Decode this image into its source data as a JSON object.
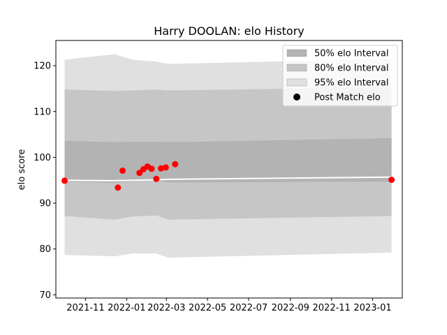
{
  "chart_data": {
    "type": "area",
    "title": "Harry DOOLAN: elo History",
    "xlabel": "",
    "ylabel": "elo score",
    "x_axis_kind": "date",
    "xlim": [
      "2021-09-18",
      "2023-02-14"
    ],
    "ylim": [
      69.3,
      125.5
    ],
    "x_tick_labels": [
      "2021-11",
      "2022-01",
      "2022-03",
      "2022-05",
      "2022-07",
      "2022-09",
      "2022-11",
      "2023-01"
    ],
    "y_ticks": [
      70,
      80,
      90,
      100,
      110,
      120
    ],
    "grid": false,
    "legend_placement": "upper right",
    "legend": [
      {
        "label": "50% elo Interval",
        "kind": "patch",
        "color": "#b3b3b3"
      },
      {
        "label": "80% elo Interval",
        "kind": "patch",
        "color": "#c6c6c6"
      },
      {
        "label": "95% elo Interval",
        "kind": "patch",
        "color": "#e0e0e0"
      },
      {
        "label": "Post Match elo",
        "kind": "marker",
        "color": "#000000"
      }
    ],
    "interval_colors": {
      "ci95": "#e0e0e0",
      "ci80": "#c6c6c6",
      "ci50": "#b3b3b3",
      "center_line": "#888888",
      "points": "#ff0000"
    },
    "intervals": [
      {
        "date": "2021-10-01",
        "mean": 95.0,
        "p50_lo": 94.7,
        "p50_hi": 103.6,
        "p80_lo": 87.2,
        "p80_hi": 114.8,
        "p95_lo": 78.7,
        "p95_hi": 121.3
      },
      {
        "date": "2021-12-14",
        "mean": 94.9,
        "p50_lo": 94.4,
        "p50_hi": 103.3,
        "p80_lo": 86.4,
        "p80_hi": 114.5,
        "p95_lo": 78.4,
        "p95_hi": 122.5
      },
      {
        "date": "2022-01-10",
        "mean": 95.0,
        "p50_lo": 94.8,
        "p50_hi": 103.4,
        "p80_lo": 87.1,
        "p80_hi": 114.6,
        "p95_lo": 79.0,
        "p95_hi": 121.3
      },
      {
        "date": "2022-02-14",
        "mean": 95.1,
        "p50_lo": 94.9,
        "p50_hi": 103.4,
        "p80_lo": 87.3,
        "p80_hi": 114.8,
        "p95_lo": 79.0,
        "p95_hi": 120.9
      },
      {
        "date": "2022-03-04",
        "mean": 95.2,
        "p50_lo": 94.5,
        "p50_hi": 103.3,
        "p80_lo": 86.4,
        "p80_hi": 114.6,
        "p95_lo": 78.1,
        "p95_hi": 120.4
      },
      {
        "date": "2023-01-29",
        "mean": 95.7,
        "p50_lo": 94.7,
        "p50_hi": 104.2,
        "p80_lo": 87.2,
        "p80_hi": 115.3,
        "p95_lo": 79.2,
        "p95_hi": 121.5
      }
    ],
    "points": [
      {
        "date": "2021-10-01",
        "elo": 94.9
      },
      {
        "date": "2021-12-19",
        "elo": 93.4
      },
      {
        "date": "2021-12-26",
        "elo": 97.1
      },
      {
        "date": "2022-01-20",
        "elo": 96.6
      },
      {
        "date": "2022-01-26",
        "elo": 97.4
      },
      {
        "date": "2022-02-01",
        "elo": 98.0
      },
      {
        "date": "2022-02-07",
        "elo": 97.5
      },
      {
        "date": "2022-02-14",
        "elo": 95.3
      },
      {
        "date": "2022-02-21",
        "elo": 97.6
      },
      {
        "date": "2022-02-28",
        "elo": 97.8
      },
      {
        "date": "2022-03-14",
        "elo": 98.5
      },
      {
        "date": "2023-01-29",
        "elo": 95.1
      }
    ]
  }
}
